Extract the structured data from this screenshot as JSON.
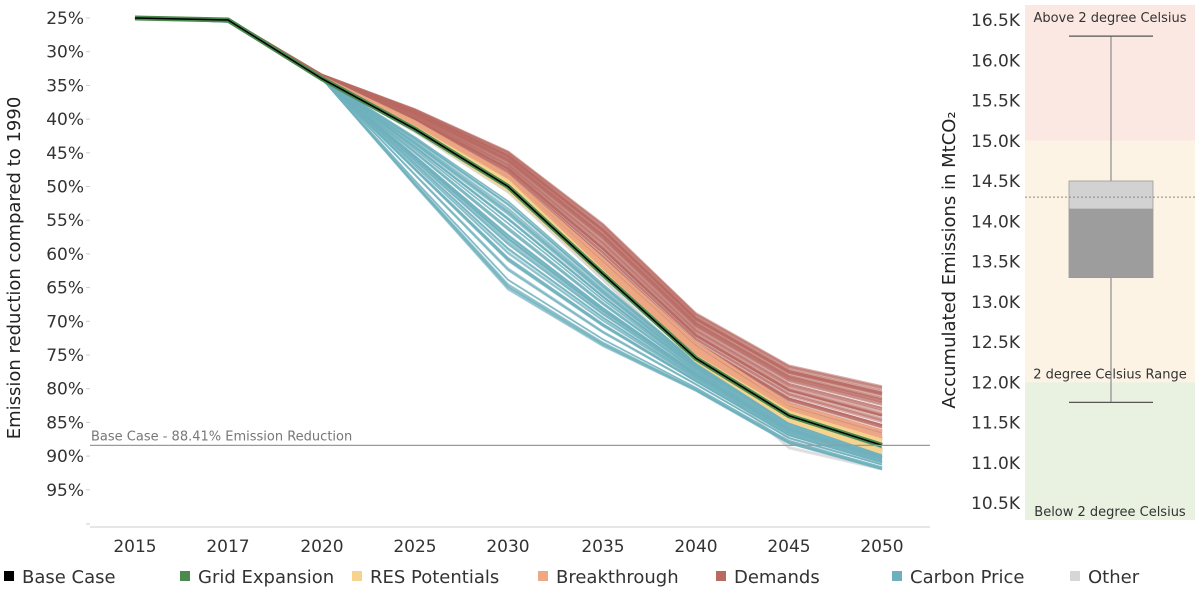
{
  "chart_data": [
    {
      "type": "line",
      "ylabel": "Emission reduction compared to 1990",
      "xlabel": "",
      "x": [
        "2015",
        "2017",
        "2020",
        "2025",
        "2030",
        "2035",
        "2040",
        "2045",
        "2050"
      ],
      "x_numeric": [
        2015,
        2017,
        2020,
        2025,
        2030,
        2035,
        2040,
        2045,
        2050
      ],
      "y_ticks": [
        "25%",
        "30%",
        "35%",
        "40%",
        "45%",
        "50%",
        "55%",
        "60%",
        "65%",
        "70%",
        "75%",
        "80%",
        "85%",
        "90%",
        "95%"
      ],
      "ylim": [
        25,
        100
      ],
      "y_inverted": true,
      "reference_line": {
        "value": 88.41,
        "label": "Base Case - 88.41% Emission Reduction"
      },
      "series": [
        {
          "name": "Base Case",
          "color": "#000000",
          "values": [
            25,
            25.3,
            34,
            41.5,
            50,
            63,
            75.5,
            84,
            88.4
          ]
        },
        {
          "name": "Grid Expansion",
          "color": "#4a8a4f",
          "values": [
            25,
            25.3,
            34,
            41.5,
            50,
            63,
            75.5,
            84,
            88.4
          ]
        },
        {
          "name": "RES Potentials",
          "color": "#f6d38f",
          "values": [
            25,
            25.3,
            34,
            41.8,
            51,
            63.5,
            75,
            83,
            87
          ]
        },
        {
          "name": "Breakthrough",
          "color": "#eea883",
          "values": [
            25,
            25.2,
            33.8,
            40.5,
            48.5,
            61,
            73.5,
            82.5,
            86.5
          ]
        },
        {
          "name": "Demands",
          "color": "#b86a63",
          "values": [
            25,
            25.2,
            33.6,
            39.5,
            46.5,
            58,
            71,
            79,
            82.5
          ]
        },
        {
          "name": "Carbon Price",
          "color": "#6fb0bd",
          "values": [
            25,
            25.5,
            34,
            47,
            60,
            70,
            79,
            87,
            91
          ]
        },
        {
          "name": "Other",
          "color": "#d6d6d6",
          "values": [
            25,
            25.3,
            34,
            42,
            51,
            64,
            77,
            89.5,
            92.5
          ]
        }
      ],
      "legend_position": "bottom",
      "grid": false
    },
    {
      "type": "box",
      "ylabel": "Accumulated Emissions in MtCO₂",
      "y_ticks": [
        "10.5K",
        "11.0K",
        "11.5K",
        "12.0K",
        "12.5K",
        "13.0K",
        "13.5K",
        "14.0K",
        "14.5K",
        "15.0K",
        "15.5K",
        "16.0K",
        "16.5K"
      ],
      "ylim": [
        10250,
        16800
      ],
      "box": {
        "min": 11750,
        "q1": 13300,
        "median": 14150,
        "q3": 14500,
        "max": 16300,
        "reference": 14300
      },
      "zones": [
        {
          "label": "Above 2 degree Celsius",
          "from": 15000,
          "to": 16800,
          "color": "#fbe8e3"
        },
        {
          "label": "2 degree Celsius Range",
          "from": 12000,
          "to": 15000,
          "color": "#fcf3e5"
        },
        {
          "label": "Below 2 degree Celsius",
          "from": 10250,
          "to": 12000,
          "color": "#e9f1e0"
        }
      ]
    }
  ]
}
